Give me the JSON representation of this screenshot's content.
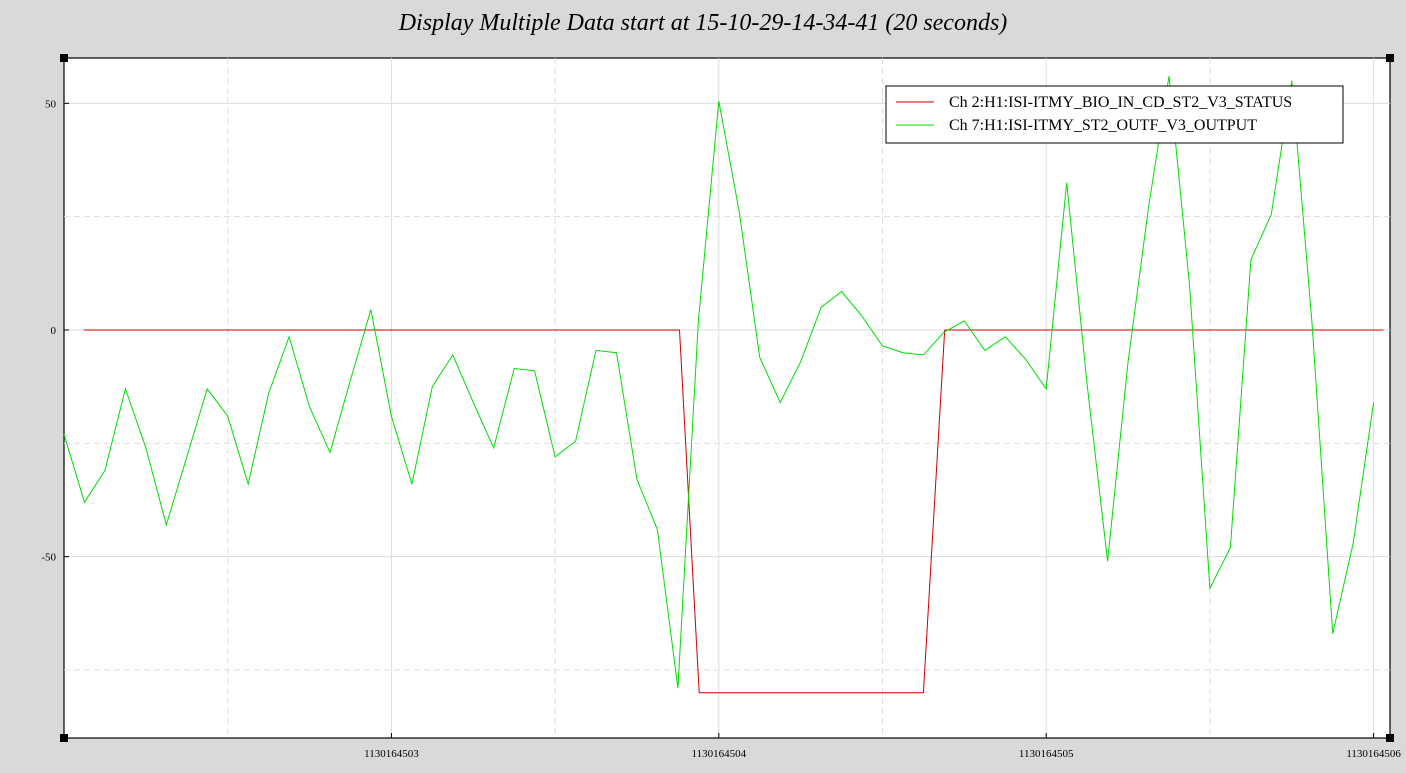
{
  "chart_data": {
    "type": "line",
    "title": "Display Multiple Data start at 15-10-29-14-34-41 (20 seconds)",
    "xlabel": "",
    "ylabel": "",
    "xlim": [
      1130164502.0,
      1130164506.05
    ],
    "ylim": [
      -90,
      60
    ],
    "x_ticks": [
      1130164503,
      1130164504,
      1130164505,
      1130164506
    ],
    "y_ticks": [
      50,
      0,
      -50
    ],
    "grid": true,
    "legend_position": "top-right",
    "series": [
      {
        "name": "Ch 2:H1:ISI-ITMY_BIO_IN_CD_ST2_V3_STATUS",
        "color": "#cc0000",
        "points": [
          [
            1130164502.06,
            0
          ],
          [
            1130164502.88,
            0
          ],
          [
            1130164503.88,
            0
          ],
          [
            1130164503.94,
            -80
          ],
          [
            1130164504.625,
            -80
          ],
          [
            1130164504.69,
            0
          ],
          [
            1130164505.5,
            0
          ],
          [
            1130164506.03,
            0
          ]
        ]
      },
      {
        "name": "Ch 7:H1:ISI-ITMY_ST2_OUTF_V3_OUTPUT",
        "color": "#00dd00",
        "values_start": 1130164502.0,
        "values_step": 0.0625,
        "values": [
          -23,
          -38,
          -31,
          -13,
          -26,
          -43,
          -28,
          -13,
          -19,
          -34,
          -14,
          -1.5,
          -17,
          -27,
          -11,
          4.5,
          -19,
          -34,
          -12.5,
          -5.5,
          -16,
          -26,
          -8.5,
          -9,
          -28,
          -24.5,
          -4.5,
          -5,
          -33,
          -44,
          -79,
          2,
          50.5,
          26,
          -6,
          -16,
          -7,
          5,
          8.5,
          3,
          -3.5,
          -5,
          -5.5,
          -0.5,
          2,
          -4.5,
          -1.5,
          -6.5,
          -13,
          32.5,
          -12,
          -51,
          -7,
          27,
          56,
          10,
          -57,
          -48,
          15.5,
          25.5,
          55,
          1,
          -67,
          -47,
          -16
        ]
      }
    ]
  }
}
